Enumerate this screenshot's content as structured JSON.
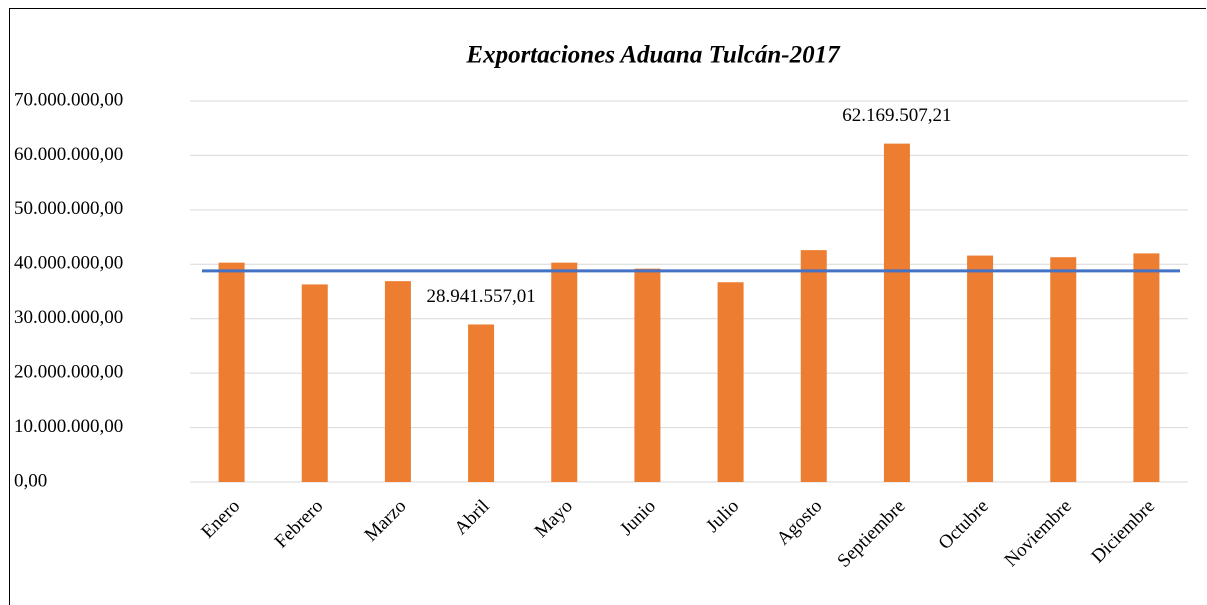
{
  "chart_data": {
    "type": "bar",
    "title": "Exportaciones Aduana Tulcán-2017",
    "categories": [
      "Enero",
      "Febrero",
      "Marzo",
      "Abril",
      "Mayo",
      "Junio",
      "Julio",
      "Agosto",
      "Septiembre",
      "Octubre",
      "Noviembre",
      "Diciembre"
    ],
    "values": [
      40300000,
      36300000,
      36900000,
      28941557.01,
      40300000,
      39200000,
      36700000,
      42600000,
      62169507.21,
      41600000,
      41300000,
      42000000
    ],
    "value_labels": [
      null,
      null,
      null,
      "28.941.557,01",
      null,
      null,
      null,
      null,
      "62.169.507,21",
      null,
      null,
      null
    ],
    "color": "#ed7d31",
    "reference_line": {
      "value": 38800000,
      "color": "#4472c4"
    },
    "ylim": [
      0,
      70000000
    ],
    "yticks": [
      {
        "value": 0,
        "label": "0,00"
      },
      {
        "value": 10000000,
        "label": "10.000.000,00"
      },
      {
        "value": 20000000,
        "label": "20.000.000,00"
      },
      {
        "value": 30000000,
        "label": "30.000.000,00"
      },
      {
        "value": 40000000,
        "label": "40.000.000,00"
      },
      {
        "value": 50000000,
        "label": "50.000.000,00"
      },
      {
        "value": 60000000,
        "label": "60.000.000,00"
      },
      {
        "value": 70000000,
        "label": "70.000.000,00"
      }
    ],
    "grid": true
  }
}
